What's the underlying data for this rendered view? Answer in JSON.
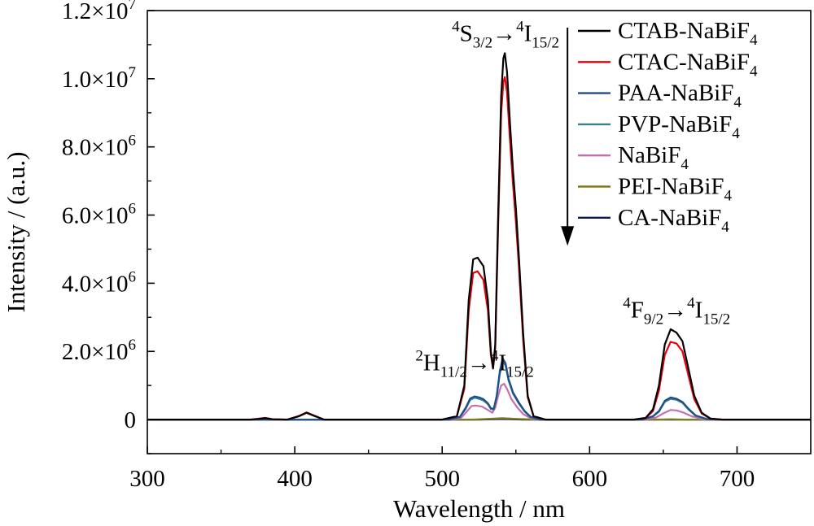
{
  "chart_data": {
    "type": "line",
    "xlabel": "Wavelength / nm",
    "ylabel": "Intensity / (a.u.)",
    "xlim": [
      300,
      750
    ],
    "ylim": [
      -1000000,
      12000000
    ],
    "grid": false,
    "legend_placement": "top-right",
    "x_ticks": [
      300,
      400,
      500,
      600,
      700
    ],
    "x_tick_labels": [
      "300",
      "400",
      "500",
      "600",
      "700"
    ],
    "y_ticks": [
      0,
      2000000,
      4000000,
      6000000,
      8000000,
      10000000,
      12000000
    ],
    "y_tick_labels": [
      {
        "base": "0",
        "exp": ""
      },
      {
        "base": "2.0×10",
        "exp": "6"
      },
      {
        "base": "4.0×10",
        "exp": "6"
      },
      {
        "base": "6.0×10",
        "exp": "6"
      },
      {
        "base": "8.0×10",
        "exp": "6"
      },
      {
        "base": "1.0×10",
        "exp": "7"
      },
      {
        "base": "1.2×10",
        "exp": "7"
      }
    ],
    "annotations": [
      {
        "pre": "4",
        "main1": "S",
        "sub1": "3/2",
        "arrow": "→",
        "pre2": "4",
        "main2": "I",
        "sub2": "15/2",
        "x": 543,
        "y": 11100000
      },
      {
        "pre": "2",
        "main1": "H",
        "sub1": "11/2",
        "arrow": "→",
        "pre2": "4",
        "main2": "I",
        "sub2": "15/2",
        "x": 522,
        "y": 1450000
      },
      {
        "pre": "4",
        "main1": "F",
        "sub1": "9/2",
        "arrow": "→",
        "pre2": "4",
        "main2": "I",
        "sub2": "15/2",
        "x": 659,
        "y": 3000000
      }
    ],
    "arrow": {
      "x": 585,
      "y_start": 11500000,
      "y_end": 5100000
    },
    "series": [
      {
        "name": "CTAB-NaBiF",
        "sub": "4",
        "color": "#000000",
        "points": [
          [
            300,
            0
          ],
          [
            370,
            0
          ],
          [
            376,
            20000
          ],
          [
            380,
            40000
          ],
          [
            385,
            10000
          ],
          [
            395,
            0
          ],
          [
            403,
            100000
          ],
          [
            408,
            200000
          ],
          [
            413,
            110000
          ],
          [
            420,
            0
          ],
          [
            500,
            0
          ],
          [
            510,
            100000
          ],
          [
            515,
            1000000
          ],
          [
            518,
            3500000
          ],
          [
            521,
            4700000
          ],
          [
            524,
            4750000
          ],
          [
            528,
            4500000
          ],
          [
            531,
            3500000
          ],
          [
            533,
            2000000
          ],
          [
            534.5,
            1500000
          ],
          [
            536,
            2200000
          ],
          [
            538,
            6000000
          ],
          [
            540,
            9500000
          ],
          [
            541.5,
            10600000
          ],
          [
            542.5,
            10750000
          ],
          [
            544,
            10200000
          ],
          [
            546,
            8700000
          ],
          [
            548,
            7300000
          ],
          [
            550,
            6200000
          ],
          [
            552,
            4800000
          ],
          [
            555,
            2500000
          ],
          [
            558,
            700000
          ],
          [
            562,
            100000
          ],
          [
            570,
            0
          ],
          [
            630,
            0
          ],
          [
            638,
            50000
          ],
          [
            643,
            300000
          ],
          [
            647,
            1000000
          ],
          [
            651,
            2200000
          ],
          [
            655,
            2650000
          ],
          [
            659,
            2550000
          ],
          [
            663,
            2300000
          ],
          [
            667,
            1500000
          ],
          [
            671,
            700000
          ],
          [
            676,
            200000
          ],
          [
            682,
            30000
          ],
          [
            690,
            0
          ],
          [
            750,
            0
          ]
        ]
      },
      {
        "name": "CTAC-NaBiF",
        "sub": "4",
        "color": "#e8000b",
        "points": [
          [
            300,
            0
          ],
          [
            370,
            0
          ],
          [
            376,
            30000
          ],
          [
            380,
            50000
          ],
          [
            385,
            10000
          ],
          [
            395,
            0
          ],
          [
            403,
            110000
          ],
          [
            408,
            210000
          ],
          [
            413,
            120000
          ],
          [
            420,
            0
          ],
          [
            500,
            0
          ],
          [
            510,
            100000
          ],
          [
            515,
            900000
          ],
          [
            518,
            3200000
          ],
          [
            521,
            4300000
          ],
          [
            524,
            4350000
          ],
          [
            528,
            4100000
          ],
          [
            531,
            3200000
          ],
          [
            533,
            1900000
          ],
          [
            534.5,
            1500000
          ],
          [
            536,
            2100000
          ],
          [
            538,
            5700000
          ],
          [
            540,
            9000000
          ],
          [
            541.5,
            9900000
          ],
          [
            542.5,
            10050000
          ],
          [
            544,
            9600000
          ],
          [
            546,
            8200000
          ],
          [
            548,
            6900000
          ],
          [
            550,
            5800000
          ],
          [
            552,
            4500000
          ],
          [
            555,
            2300000
          ],
          [
            558,
            650000
          ],
          [
            562,
            100000
          ],
          [
            570,
            0
          ],
          [
            630,
            0
          ],
          [
            638,
            40000
          ],
          [
            643,
            250000
          ],
          [
            647,
            850000
          ],
          [
            651,
            1900000
          ],
          [
            655,
            2280000
          ],
          [
            659,
            2230000
          ],
          [
            663,
            2000000
          ],
          [
            667,
            1300000
          ],
          [
            671,
            600000
          ],
          [
            676,
            180000
          ],
          [
            682,
            25000
          ],
          [
            690,
            0
          ],
          [
            750,
            0
          ]
        ]
      },
      {
        "name": "PAA-NaBiF",
        "sub": "4",
        "color": "#1f4e8c",
        "points": [
          [
            300,
            0
          ],
          [
            505,
            0
          ],
          [
            512,
            80000
          ],
          [
            516,
            350000
          ],
          [
            519,
            620000
          ],
          [
            522,
            680000
          ],
          [
            525,
            650000
          ],
          [
            528,
            600000
          ],
          [
            531,
            480000
          ],
          [
            533,
            330000
          ],
          [
            535,
            320000
          ],
          [
            537,
            700000
          ],
          [
            539,
            1400000
          ],
          [
            541,
            1800000
          ],
          [
            543,
            1650000
          ],
          [
            545,
            1200000
          ],
          [
            548,
            800000
          ],
          [
            552,
            500000
          ],
          [
            556,
            250000
          ],
          [
            560,
            80000
          ],
          [
            566,
            0
          ],
          [
            636,
            0
          ],
          [
            643,
            100000
          ],
          [
            647,
            250000
          ],
          [
            651,
            550000
          ],
          [
            655,
            650000
          ],
          [
            659,
            610000
          ],
          [
            663,
            520000
          ],
          [
            667,
            320000
          ],
          [
            672,
            120000
          ],
          [
            680,
            10000
          ],
          [
            688,
            0
          ],
          [
            750,
            0
          ]
        ]
      },
      {
        "name": "PVP-NaBiF",
        "sub": "4",
        "color": "#3a7d8c",
        "points": [
          [
            300,
            0
          ],
          [
            505,
            0
          ],
          [
            512,
            70000
          ],
          [
            516,
            320000
          ],
          [
            519,
            580000
          ],
          [
            522,
            640000
          ],
          [
            525,
            610000
          ],
          [
            528,
            560000
          ],
          [
            531,
            450000
          ],
          [
            533,
            310000
          ],
          [
            535,
            300000
          ],
          [
            537,
            660000
          ],
          [
            539,
            1320000
          ],
          [
            541,
            1720000
          ],
          [
            543,
            1580000
          ],
          [
            545,
            1150000
          ],
          [
            548,
            760000
          ],
          [
            552,
            470000
          ],
          [
            556,
            230000
          ],
          [
            560,
            70000
          ],
          [
            566,
            0
          ],
          [
            636,
            0
          ],
          [
            643,
            90000
          ],
          [
            647,
            230000
          ],
          [
            651,
            520000
          ],
          [
            655,
            610000
          ],
          [
            659,
            580000
          ],
          [
            663,
            490000
          ],
          [
            667,
            300000
          ],
          [
            672,
            110000
          ],
          [
            680,
            10000
          ],
          [
            688,
            0
          ],
          [
            750,
            0
          ]
        ]
      },
      {
        "name": "NaBiF",
        "sub": "4",
        "color": "#c470b0",
        "points": [
          [
            300,
            0
          ],
          [
            507,
            0
          ],
          [
            513,
            60000
          ],
          [
            517,
            250000
          ],
          [
            520,
            400000
          ],
          [
            523,
            410000
          ],
          [
            527,
            380000
          ],
          [
            531,
            280000
          ],
          [
            534,
            200000
          ],
          [
            536,
            350000
          ],
          [
            538,
            700000
          ],
          [
            540,
            1000000
          ],
          [
            542,
            1050000
          ],
          [
            544,
            900000
          ],
          [
            547,
            600000
          ],
          [
            551,
            350000
          ],
          [
            555,
            160000
          ],
          [
            560,
            40000
          ],
          [
            566,
            0
          ],
          [
            638,
            0
          ],
          [
            645,
            60000
          ],
          [
            650,
            180000
          ],
          [
            655,
            280000
          ],
          [
            659,
            270000
          ],
          [
            664,
            200000
          ],
          [
            669,
            100000
          ],
          [
            676,
            20000
          ],
          [
            684,
            0
          ],
          [
            750,
            0
          ]
        ]
      },
      {
        "name": "PEI-NaBiF",
        "sub": "4",
        "color": "#7f7a1f",
        "points": [
          [
            300,
            0
          ],
          [
            520,
            0
          ],
          [
            530,
            15000
          ],
          [
            541,
            40000
          ],
          [
            552,
            15000
          ],
          [
            565,
            0
          ],
          [
            645,
            0
          ],
          [
            655,
            10000
          ],
          [
            665,
            0
          ],
          [
            750,
            0
          ]
        ]
      },
      {
        "name": "CA-NaBiF",
        "sub": "4",
        "color": "#0a1a4f",
        "points": [
          [
            300,
            0
          ],
          [
            525,
            0
          ],
          [
            541,
            15000
          ],
          [
            555,
            0
          ],
          [
            750,
            0
          ]
        ]
      }
    ]
  }
}
